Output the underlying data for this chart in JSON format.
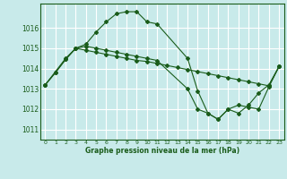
{
  "xlabel": "Graphe pression niveau de la mer (hPa)",
  "background_color": "#c8eaea",
  "grid_color": "#ffffff",
  "line_color": "#1a5c1a",
  "ylim": [
    1010.5,
    1017.2
  ],
  "xlim": [
    -0.5,
    23.5
  ],
  "yticks": [
    1011,
    1012,
    1013,
    1014,
    1015,
    1016
  ],
  "xticks": [
    0,
    1,
    2,
    3,
    4,
    5,
    6,
    7,
    8,
    9,
    10,
    11,
    12,
    13,
    14,
    15,
    16,
    17,
    18,
    19,
    20,
    21,
    22,
    23
  ],
  "series": [
    {
      "x": [
        0,
        1,
        2,
        3,
        4,
        5,
        6,
        7,
        8,
        9,
        10,
        11,
        12,
        13,
        14,
        15,
        16,
        17,
        18,
        19,
        20,
        21,
        22,
        23
      ],
      "y": [
        1013.2,
        1013.8,
        1014.45,
        1015.0,
        1014.9,
        1014.8,
        1014.7,
        1014.6,
        1014.5,
        1014.4,
        1014.35,
        1014.25,
        1014.15,
        1014.05,
        1013.95,
        1013.85,
        1013.75,
        1013.65,
        1013.55,
        1013.45,
        1013.35,
        1013.25,
        1013.15,
        1014.1
      ]
    },
    {
      "x": [
        0,
        1,
        2,
        3,
        4,
        5,
        6,
        7,
        8,
        9,
        10,
        11,
        14,
        15,
        16,
        17,
        18,
        19,
        20,
        21,
        22,
        23
      ],
      "y": [
        1013.2,
        1013.8,
        1014.45,
        1015.0,
        1015.1,
        1015.0,
        1014.9,
        1014.8,
        1014.7,
        1014.6,
        1014.5,
        1014.4,
        1013.0,
        1012.0,
        1011.8,
        1011.5,
        1012.0,
        1012.2,
        1012.1,
        1012.0,
        1013.1,
        1014.1
      ]
    },
    {
      "x": [
        0,
        2,
        3,
        4,
        5,
        6,
        7,
        8,
        9,
        10,
        11,
        14,
        15,
        16,
        17,
        18,
        19,
        20,
        21,
        22,
        23
      ],
      "y": [
        1013.2,
        1014.5,
        1015.0,
        1015.2,
        1015.8,
        1016.3,
        1016.7,
        1016.8,
        1016.8,
        1016.3,
        1016.2,
        1014.5,
        1012.9,
        1011.8,
        1011.5,
        1012.0,
        1011.8,
        1012.2,
        1012.8,
        1013.2,
        1014.1
      ]
    }
  ]
}
